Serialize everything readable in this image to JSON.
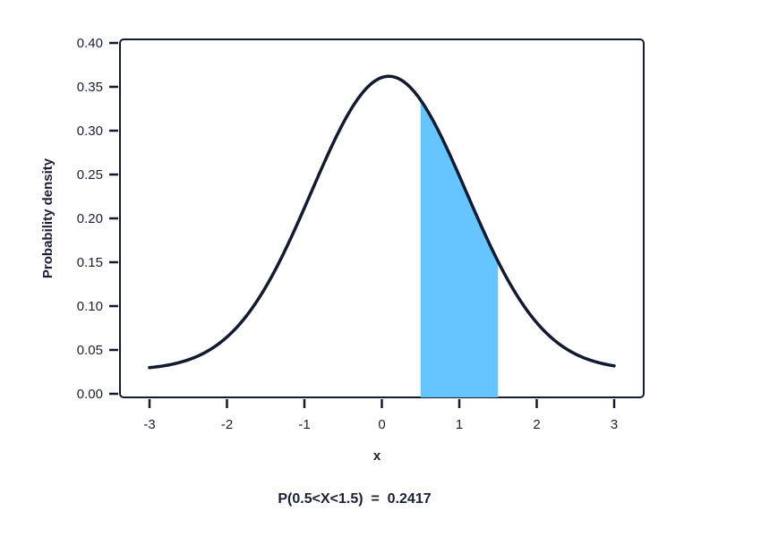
{
  "chart_data": {
    "type": "area",
    "xlabel": "x",
    "ylabel": "Probability density",
    "xlim": [
      -3,
      3
    ],
    "ylim": [
      0,
      0.4
    ],
    "x_ticks": [
      -3,
      -2,
      -1,
      0,
      1,
      2,
      3
    ],
    "y_ticks": [
      "0.00",
      "0.05",
      "0.10",
      "0.15",
      "0.20",
      "0.25",
      "0.30",
      "0.35",
      "0.40"
    ],
    "curve": {
      "mean": 0.09,
      "std": 1.0,
      "x": [
        -3.0,
        -2.5,
        -2.0,
        -1.5,
        -1.0,
        -0.5,
        0.0,
        0.09,
        0.5,
        1.0,
        1.5,
        2.0,
        2.5,
        3.0
      ],
      "y": [
        0.027,
        0.036,
        0.063,
        0.118,
        0.219,
        0.335,
        0.361,
        0.362,
        0.331,
        0.265,
        0.155,
        0.064,
        0.047,
        0.027
      ]
    },
    "shaded_region": {
      "from": 0.5,
      "to": 1.5,
      "color": "#66c5ff"
    },
    "line_color": "#111a2e",
    "annotation": "P(0.5<X<1.5)  =  0.2417",
    "grid": false
  }
}
